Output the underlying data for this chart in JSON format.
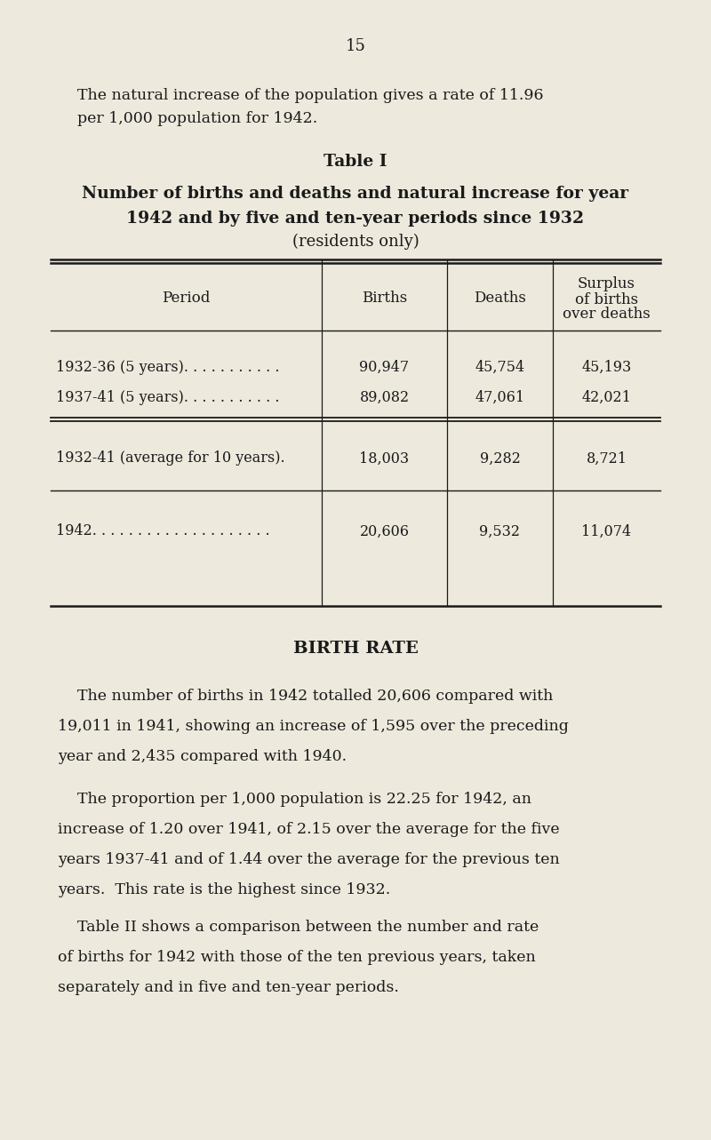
{
  "page_number": "15",
  "bg_color": "#ede9dd",
  "text_color": "#1a1a1a",
  "intro_line1": "The natural increase of the population gives a rate of 11.96",
  "intro_line2": "per 1,000 population for 1942.",
  "table_title": "Table I",
  "table_subtitle_line1": "Number of births and deaths and natural increase for year",
  "table_subtitle_line2": "1942 and by five and ten-year periods since 1932",
  "table_subtitle_line3": "(residents only)",
  "col_header_period": "Period",
  "col_header_births": "Births",
  "col_header_deaths": "Deaths",
  "col_header_surplus1": "Surplus",
  "col_header_surplus2": "of births",
  "col_header_surplus3": "over deaths",
  "row0_period": "1932-36 (5 years). . . . . . . . . . .",
  "row1_period": "1937-41 (5 years). . . . . . . . . . .",
  "row2_period": "1932-41 (average for 10 years).",
  "row3_period": "1942. . . . . . . . . . . . . . . . . . . .",
  "row0_births": "90,947",
  "row1_births": "89,082",
  "row2_births": "18,003",
  "row3_births": "20,606",
  "row0_deaths": "45,754",
  "row1_deaths": "47,061",
  "row2_deaths": "9,282",
  "row3_deaths": "9,532",
  "row0_surplus": "45,193",
  "row1_surplus": "42,021",
  "row2_surplus": "8,721",
  "row3_surplus": "11,074",
  "birth_rate_heading": "BIRTH RATE",
  "p1_line1": "The number of births in 1942 totalled 20,606 compared with",
  "p1_line2": "19,011 in 1941, showing an increase of 1,595 over the preceding",
  "p1_line3": "year and 2,435 compared with 1940.",
  "p2_line1": "The proportion per 1,000 population is 22.25 for 1942, an",
  "p2_line2": "increase of 1.20 over 1941, of 2.15 over the average for the five",
  "p2_line3": "years 1937-41 and of 1.44 over the average for the previous ten",
  "p2_line4": "years.  This rate is the highest since 1932.",
  "p3_line1": "Table II shows a comparison between the number and rate",
  "p3_line2": "of births for 1942 with those of the ten previous years, taken",
  "p3_line3": "separately and in five and ten-year periods."
}
